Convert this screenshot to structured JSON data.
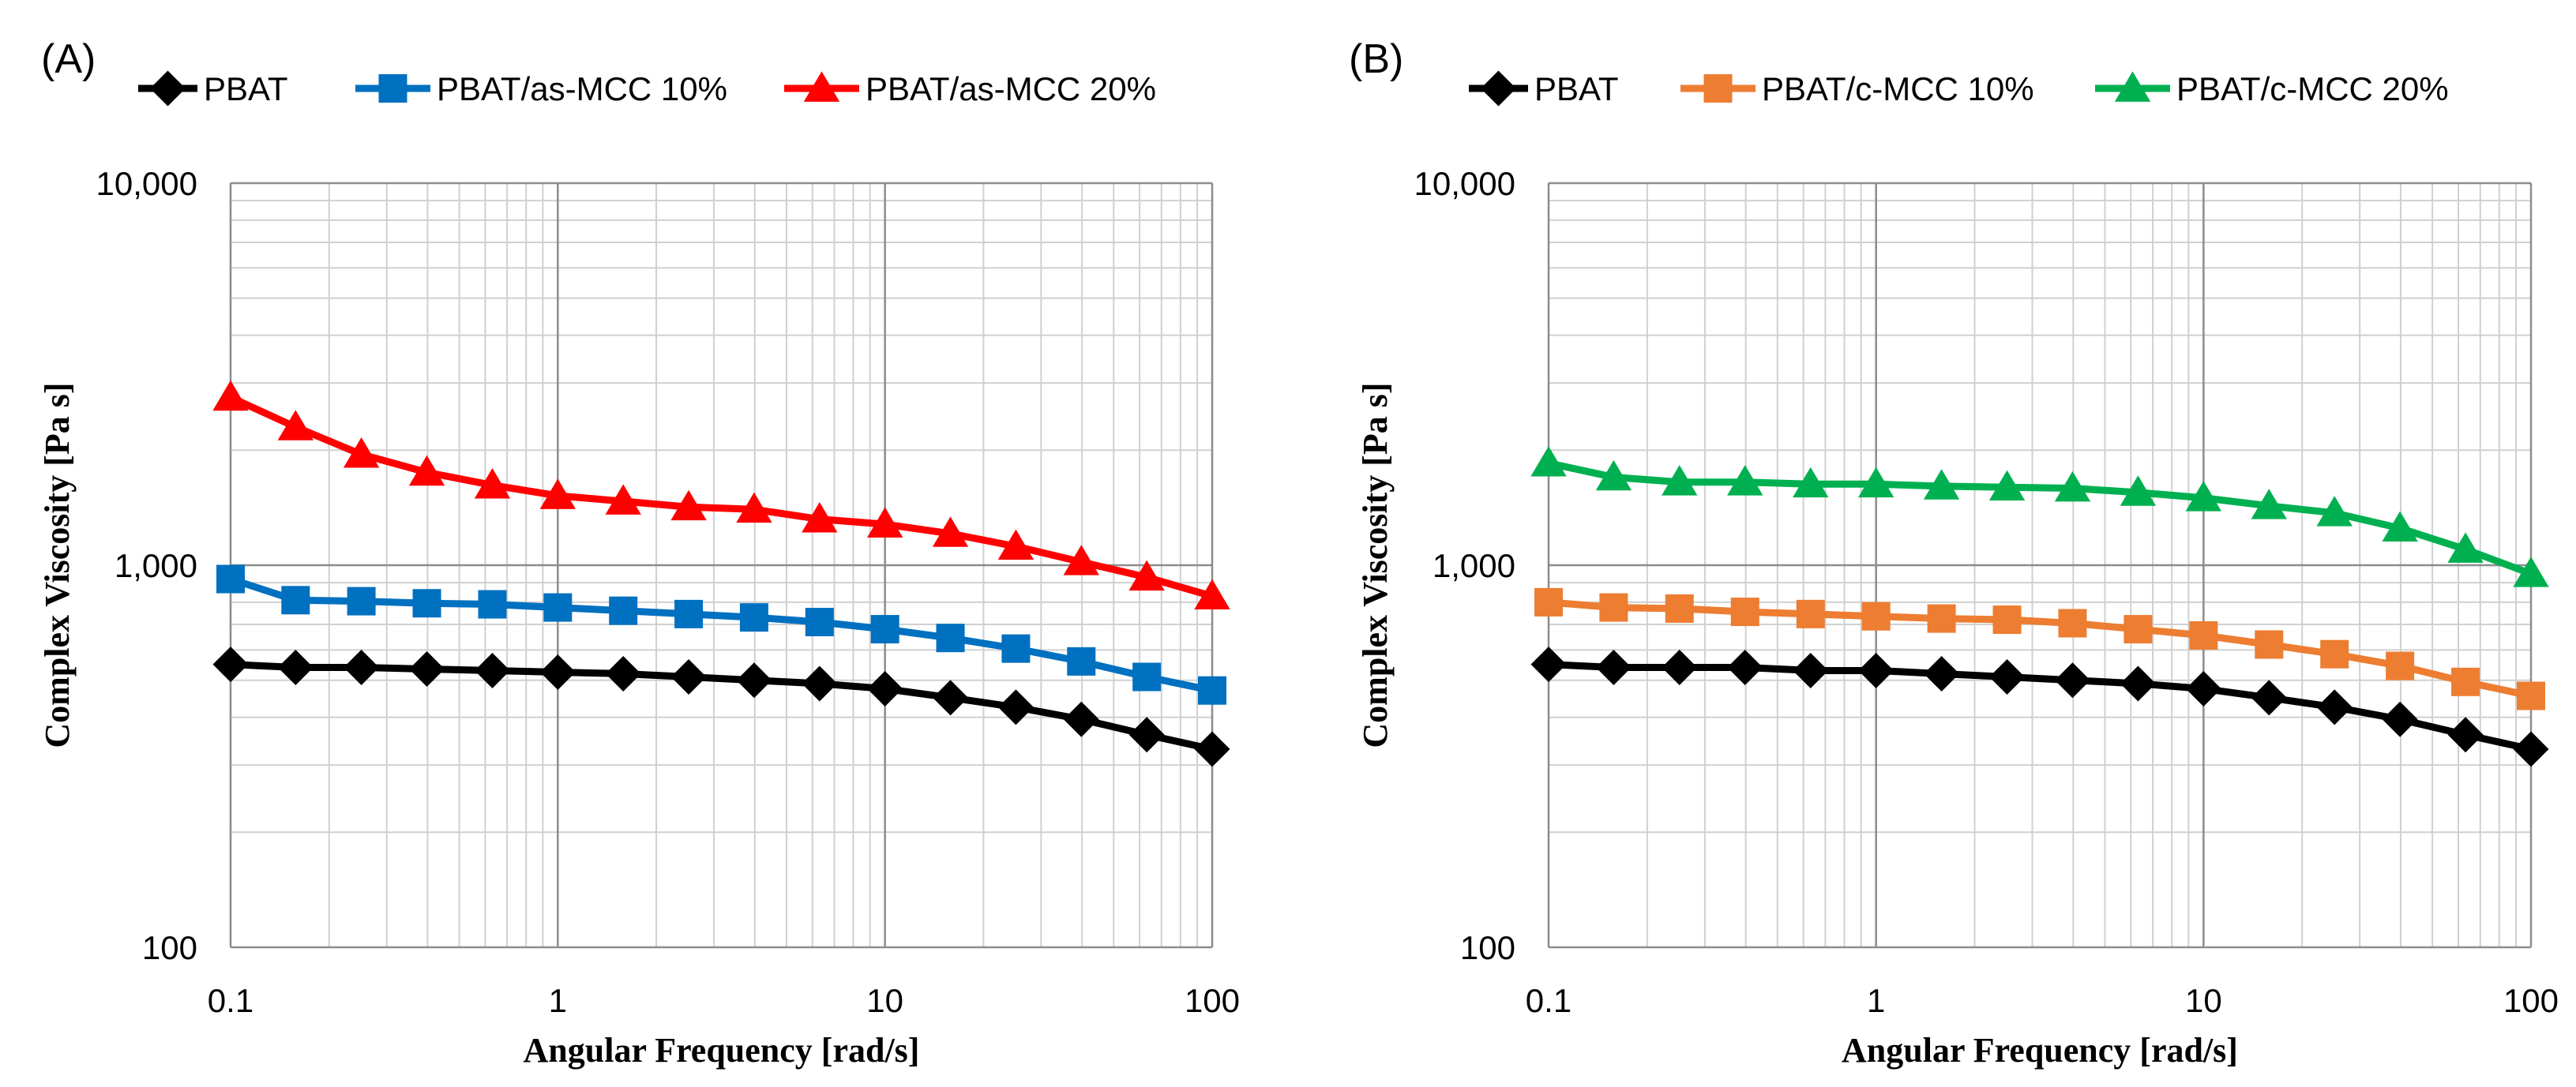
{
  "chart_data": [
    {
      "panel_label": "(A)",
      "type": "line",
      "xscale": "log",
      "yscale": "log",
      "xlim": [
        0.1,
        100
      ],
      "ylim": [
        100,
        10000
      ],
      "xlabel": "Angular Frequency [rad/s]",
      "ylabel": "Complex Viscosity [Pa s]",
      "x_tick_labels": [
        "0.1",
        "1",
        "10",
        "100"
      ],
      "y_tick_labels": [
        "100",
        "1,000",
        "10,000"
      ],
      "grid": true,
      "legend_position": "top",
      "x": [
        0.1,
        0.158,
        0.251,
        0.398,
        0.631,
        1,
        1.585,
        2.512,
        3.981,
        6.31,
        10,
        15.85,
        25.12,
        39.81,
        63.1,
        100
      ],
      "series": [
        {
          "name": "PBAT",
          "color": "#000000",
          "marker": "diamond",
          "values": [
            550,
            540,
            540,
            535,
            530,
            525,
            520,
            510,
            500,
            490,
            475,
            450,
            425,
            395,
            360,
            330
          ]
        },
        {
          "name": "PBAT/as-MCC 10%",
          "color": "#0070C0",
          "marker": "square",
          "values": [
            920,
            810,
            805,
            795,
            790,
            775,
            760,
            745,
            730,
            710,
            680,
            645,
            605,
            560,
            510,
            470
          ]
        },
        {
          "name": "PBAT/as-MCC 20%",
          "color": "#FF0000",
          "marker": "triangle",
          "values": [
            2750,
            2300,
            1950,
            1750,
            1620,
            1520,
            1470,
            1420,
            1400,
            1320,
            1280,
            1210,
            1120,
            1020,
            930,
            830
          ]
        }
      ]
    },
    {
      "panel_label": "(B)",
      "type": "line",
      "xscale": "log",
      "yscale": "log",
      "xlim": [
        0.1,
        100
      ],
      "ylim": [
        100,
        10000
      ],
      "xlabel": "Angular Frequency [rad/s]",
      "ylabel": "Complex Viscosity [Pa s]",
      "x_tick_labels": [
        "0.1",
        "1",
        "10",
        "100"
      ],
      "y_tick_labels": [
        "100",
        "1,000",
        "10,000"
      ],
      "grid": true,
      "legend_position": "top",
      "x": [
        0.1,
        0.158,
        0.251,
        0.398,
        0.631,
        1,
        1.585,
        2.512,
        3.981,
        6.31,
        10,
        15.85,
        25.12,
        39.81,
        63.1,
        100
      ],
      "series": [
        {
          "name": "PBAT",
          "color": "#000000",
          "marker": "diamond",
          "values": [
            550,
            540,
            540,
            540,
            530,
            530,
            520,
            510,
            500,
            490,
            475,
            450,
            425,
            395,
            360,
            330
          ]
        },
        {
          "name": "PBAT/c-MCC 10%",
          "color": "#ED7D31",
          "marker": "square",
          "values": [
            800,
            775,
            770,
            755,
            745,
            735,
            725,
            720,
            705,
            680,
            655,
            620,
            585,
            545,
            495,
            455
          ]
        },
        {
          "name": "PBAT/c-MCC 20%",
          "color": "#00B050",
          "marker": "triangle",
          "values": [
            1850,
            1700,
            1650,
            1650,
            1630,
            1630,
            1610,
            1600,
            1590,
            1550,
            1500,
            1430,
            1370,
            1250,
            1100,
            950
          ]
        }
      ]
    }
  ]
}
